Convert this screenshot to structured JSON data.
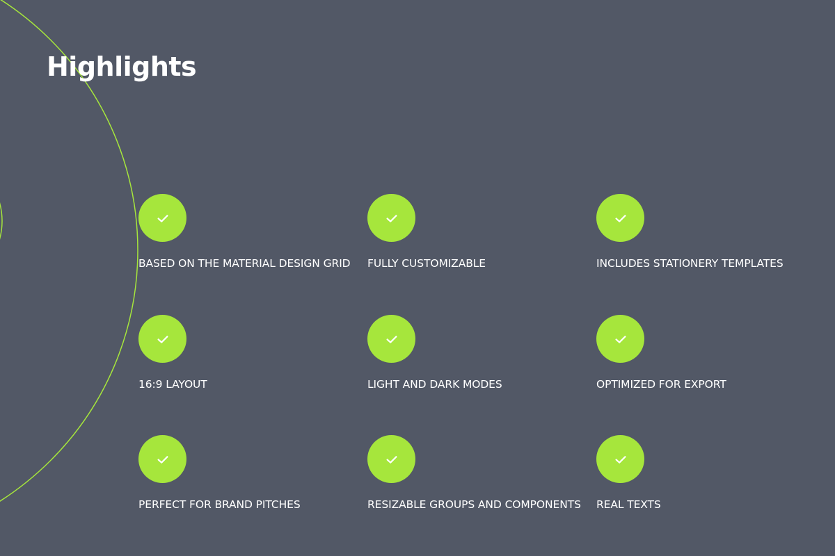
{
  "slide": {
    "title": "Highlights"
  },
  "colors": {
    "background": "#525866",
    "accent": "#a6e63c",
    "text": "#ffffff",
    "check": "#ffffff"
  },
  "features": [
    {
      "label": "BASED ON THE MATERIAL DESIGN GRID",
      "icon": "check-icon"
    },
    {
      "label": "FULLY CUSTOMIZABLE",
      "icon": "check-icon"
    },
    {
      "label": "INCLUDES STATIONERY TEMPLATES",
      "icon": "check-icon"
    },
    {
      "label": "16:9 LAYOUT",
      "icon": "check-icon"
    },
    {
      "label": "LIGHT AND DARK MODES",
      "icon": "check-icon"
    },
    {
      "label": "OPTIMIZED FOR EXPORT",
      "icon": "check-icon"
    },
    {
      "label": "PERFECT FOR BRAND PITCHES",
      "icon": "check-icon"
    },
    {
      "label": "RESIZABLE GROUPS AND COMPONENTS",
      "icon": "check-icon"
    },
    {
      "label": "REAL TEXTS",
      "icon": "check-icon"
    }
  ]
}
